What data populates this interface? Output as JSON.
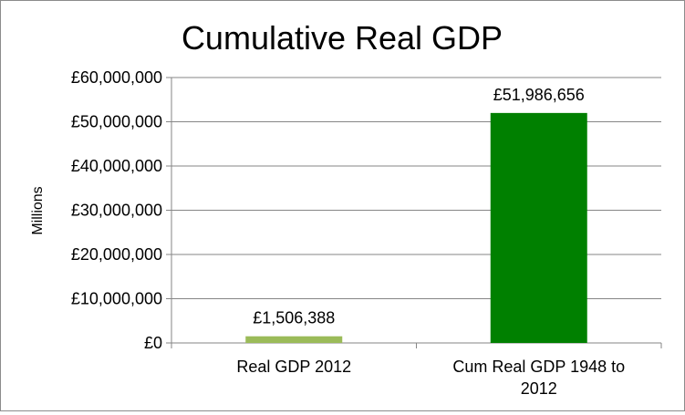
{
  "chart_data": {
    "type": "bar",
    "title": "Cumulative Real GDP",
    "ylabel": "Millions",
    "xlabel": "",
    "categories": [
      "Real GDP 2012",
      "Cum Real GDP 1948 to 2012"
    ],
    "category_lines": [
      [
        "Real GDP 2012"
      ],
      [
        "Cum Real GDP 1948 to",
        "2012"
      ]
    ],
    "values": [
      1506388,
      51986656
    ],
    "value_labels": [
      "£1,506,388",
      "£51,986,656"
    ],
    "bar_colors": [
      "#9bbb59",
      "#008000"
    ],
    "ylim": [
      0,
      60000000
    ],
    "yticks": [
      0,
      10000000,
      20000000,
      30000000,
      40000000,
      50000000,
      60000000
    ],
    "ytick_labels": [
      "£0",
      "£10,000,000",
      "£20,000,000",
      "£30,000,000",
      "£40,000,000",
      "£50,000,000",
      "£60,000,000"
    ],
    "grid": true,
    "legend": "none"
  }
}
